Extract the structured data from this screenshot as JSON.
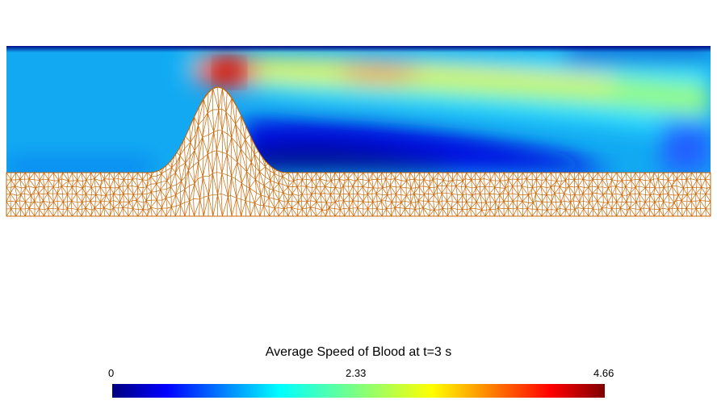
{
  "legend": {
    "title": "Average Speed of Blood at t=3 s",
    "ticks": [
      "0",
      "2.33",
      "4.66"
    ],
    "colormap": "jet"
  },
  "colors": {
    "mesh_edge": "#c86400",
    "mesh_fill": "#ffffff",
    "jet": [
      "#00007f",
      "#0000ff",
      "#007fff",
      "#00ffff",
      "#7fff7f",
      "#ffff00",
      "#ff7f00",
      "#ff0000",
      "#7f0000"
    ]
  }
}
